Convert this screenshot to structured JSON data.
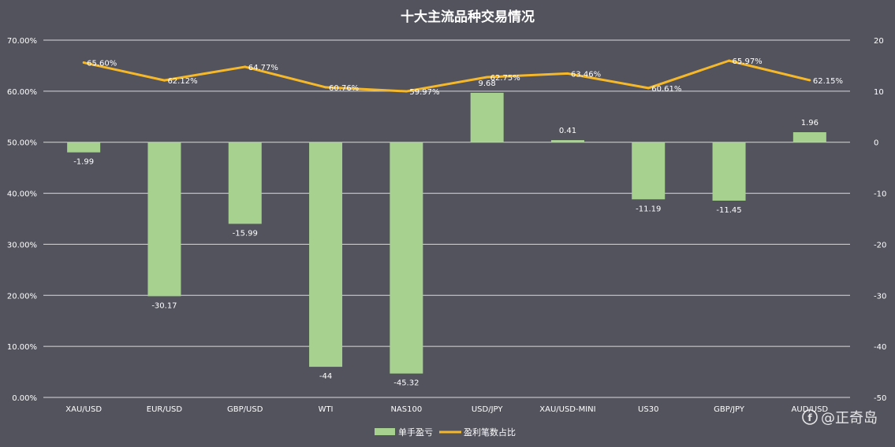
{
  "chart_data": {
    "type": "bar",
    "title": "十大主流品种交易情况",
    "categories": [
      "XAU/USD",
      "EUR/USD",
      "GBP/USD",
      "WTI",
      "NAS100",
      "USD/JPY",
      "XAU/USD-MINI",
      "US30",
      "GBP/JPY",
      "AUD/USD"
    ],
    "left_axis": {
      "ticks": [
        "0.00%",
        "10.00%",
        "20.00%",
        "30.00%",
        "40.00%",
        "50.00%",
        "60.00%",
        "70.00%"
      ],
      "range": [
        0,
        70
      ]
    },
    "right_axis": {
      "ticks": [
        "-50",
        "-40",
        "-30",
        "-20",
        "-10",
        "0",
        "10",
        "20"
      ],
      "range": [
        -50,
        20
      ]
    },
    "grid": true,
    "legend_position": "bottom",
    "series": [
      {
        "name": "单手盈亏",
        "type": "bar",
        "axis": "right",
        "color": "#a6d18f",
        "values": [
          -1.99,
          -30.17,
          -15.99,
          -44,
          -45.32,
          9.68,
          0.41,
          -11.19,
          -11.45,
          1.96
        ],
        "labels": [
          "-1.99",
          "-30.17",
          "-15.99",
          "-44",
          "-45.32",
          "9.68",
          "0.41",
          "-11.19",
          "-11.45",
          "1.96"
        ]
      },
      {
        "name": "盈利笔数占比",
        "type": "line",
        "axis": "left",
        "color": "#f5b82a",
        "values": [
          65.6,
          62.12,
          64.77,
          60.76,
          59.97,
          62.75,
          63.46,
          60.61,
          65.97,
          62.15
        ],
        "labels": [
          "65.60%",
          "62.12%",
          "64.77%",
          "60.76%",
          "59.97%",
          "62.75%",
          "63.46%",
          "60.61%",
          "65.97%",
          "62.15%"
        ]
      }
    ]
  },
  "watermark": {
    "text": "@正奇岛"
  },
  "colors": {
    "background": "#52535d",
    "grid": "#e8e8e8",
    "text": "#ffffff"
  }
}
